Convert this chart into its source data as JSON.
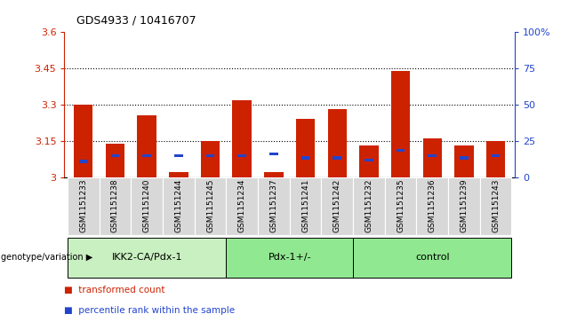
{
  "title": "GDS4933 / 10416707",
  "samples": [
    "GSM1151233",
    "GSM1151238",
    "GSM1151240",
    "GSM1151244",
    "GSM1151245",
    "GSM1151234",
    "GSM1151237",
    "GSM1151241",
    "GSM1151242",
    "GSM1151232",
    "GSM1151235",
    "GSM1151236",
    "GSM1151239",
    "GSM1151243"
  ],
  "red_values": [
    3.3,
    3.14,
    3.255,
    3.022,
    3.15,
    3.32,
    3.022,
    3.24,
    3.28,
    3.13,
    3.44,
    3.16,
    3.13,
    3.15
  ],
  "blue_values": [
    3.065,
    3.09,
    3.09,
    3.09,
    3.09,
    3.09,
    3.095,
    3.08,
    3.08,
    3.07,
    3.11,
    3.09,
    3.08,
    3.09
  ],
  "groups": [
    {
      "label": "IKK2-CA/Pdx-1",
      "start": 0,
      "end": 5,
      "color": "#c8f0c0"
    },
    {
      "label": "Pdx-1+/-",
      "start": 5,
      "end": 9,
      "color": "#90e890"
    },
    {
      "label": "control",
      "start": 9,
      "end": 14,
      "color": "#90e890"
    }
  ],
  "ylim_left": [
    3.0,
    3.6
  ],
  "ylim_right": [
    0,
    100
  ],
  "yticks_left": [
    3.0,
    3.15,
    3.3,
    3.45,
    3.6
  ],
  "yticks_right": [
    0,
    25,
    50,
    75,
    100
  ],
  "ytick_labels_left": [
    "3",
    "3.15",
    "3.3",
    "3.45",
    "3.6"
  ],
  "ytick_labels_right": [
    "0",
    "25",
    "50",
    "75",
    "100%"
  ],
  "hlines": [
    3.15,
    3.3,
    3.45
  ],
  "bar_width": 0.6,
  "red_color": "#cc2200",
  "blue_color": "#2244cc",
  "legend_items": [
    {
      "color": "#cc2200",
      "label": "transformed count"
    },
    {
      "color": "#2244cc",
      "label": "percentile rank within the sample"
    }
  ]
}
